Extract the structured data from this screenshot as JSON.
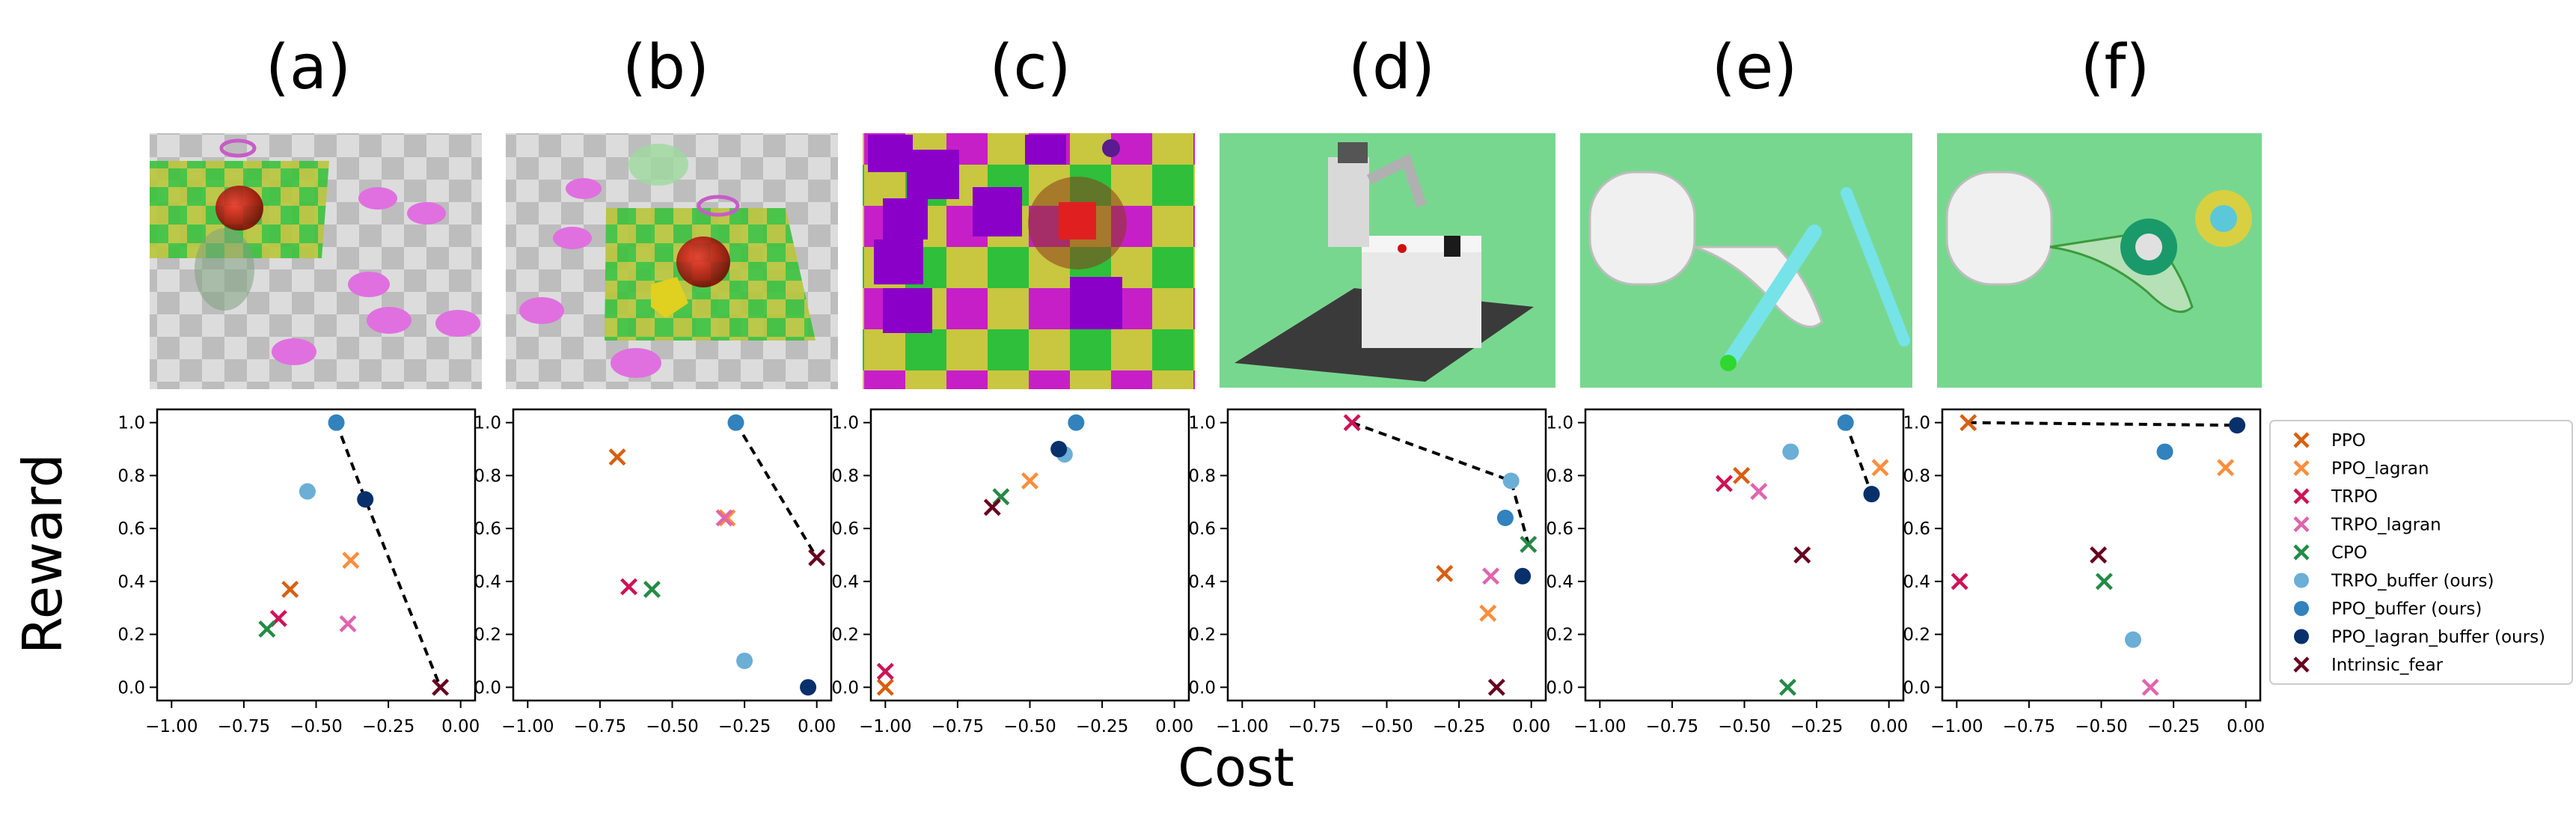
{
  "figure": {
    "ylabel": "Reward",
    "xlabel": "Cost",
    "panel_letters": [
      "(a)",
      "(b)",
      "(c)",
      "(d)",
      "(e)",
      "(f)"
    ]
  },
  "legend": {
    "items": [
      {
        "label": "PPO",
        "marker": "x",
        "color": "#d95f0e"
      },
      {
        "label": "PPO_lagran",
        "marker": "x",
        "color": "#fd8d3c"
      },
      {
        "label": "TRPO",
        "marker": "x",
        "color": "#ce1256"
      },
      {
        "label": "TRPO_lagran",
        "marker": "x",
        "color": "#df65b0"
      },
      {
        "label": "CPO",
        "marker": "x",
        "color": "#238b45"
      },
      {
        "label": "TRPO_buffer (ours)",
        "marker": "o",
        "color": "#6baed6"
      },
      {
        "label": "PPO_buffer (ours)",
        "marker": "o",
        "color": "#3182bd"
      },
      {
        "label": "PPO_lagran_buffer (ours)",
        "marker": "o",
        "color": "#08306b"
      },
      {
        "label": "Intrinsic_fear",
        "marker": "x",
        "color": "#67001f"
      }
    ]
  },
  "scene_images": [
    {
      "panel": "(a)",
      "style": "checker-pink"
    },
    {
      "panel": "(b)",
      "style": "checker-pink-yellow"
    },
    {
      "panel": "(c)",
      "style": "checker-purple-cubes"
    },
    {
      "panel": "(d)",
      "style": "robot-arm"
    },
    {
      "panel": "(e)",
      "style": "shadow-hand-pen"
    },
    {
      "panel": "(f)",
      "style": "shadow-hand-blocks"
    }
  ],
  "chart_data": [
    {
      "type": "scatter",
      "panel": "(a)",
      "xlim": [
        -1.05,
        0.05
      ],
      "ylim": [
        -0.05,
        1.05
      ],
      "xticks": [
        "-1.00",
        "-0.75",
        "-0.50",
        "-0.25",
        "0.00"
      ],
      "yticks": [
        "0.0",
        "0.2",
        "0.4",
        "0.6",
        "0.8",
        "1.0"
      ],
      "points": [
        {
          "series": "PPO",
          "x": -0.59,
          "y": 0.37
        },
        {
          "series": "PPO_lagran",
          "x": -0.38,
          "y": 0.48
        },
        {
          "series": "TRPO",
          "x": -0.63,
          "y": 0.26
        },
        {
          "series": "TRPO_lagran",
          "x": -0.39,
          "y": 0.24
        },
        {
          "series": "CPO",
          "x": -0.67,
          "y": 0.22
        },
        {
          "series": "TRPO_buffer (ours)",
          "x": -0.53,
          "y": 0.74
        },
        {
          "series": "PPO_buffer (ours)",
          "x": -0.43,
          "y": 1.0
        },
        {
          "series": "PPO_lagran_buffer (ours)",
          "x": -0.33,
          "y": 0.71
        },
        {
          "series": "Intrinsic_fear",
          "x": -0.07,
          "y": 0.0
        }
      ],
      "frontier": [
        [
          -0.43,
          1.0
        ],
        [
          -0.33,
          0.71
        ],
        [
          -0.07,
          0.0
        ]
      ]
    },
    {
      "type": "scatter",
      "panel": "(b)",
      "xlim": [
        -1.05,
        0.05
      ],
      "ylim": [
        -0.05,
        1.05
      ],
      "xticks": [
        "-1.00",
        "-0.75",
        "-0.50",
        "-0.25",
        "0.00"
      ],
      "yticks": [
        "0.0",
        "0.2",
        "0.4",
        "0.6",
        "0.8",
        "1.0"
      ],
      "points": [
        {
          "series": "PPO",
          "x": -0.69,
          "y": 0.87
        },
        {
          "series": "PPO_lagran",
          "x": -0.31,
          "y": 0.64
        },
        {
          "series": "TRPO",
          "x": -0.65,
          "y": 0.38
        },
        {
          "series": "TRPO_lagran",
          "x": -0.32,
          "y": 0.64
        },
        {
          "series": "CPO",
          "x": -0.57,
          "y": 0.37
        },
        {
          "series": "TRPO_buffer (ours)",
          "x": -0.25,
          "y": 0.1
        },
        {
          "series": "PPO_buffer (ours)",
          "x": -0.28,
          "y": 1.0
        },
        {
          "series": "PPO_lagran_buffer (ours)",
          "x": -0.03,
          "y": 0.0
        },
        {
          "series": "Intrinsic_fear",
          "x": 0.0,
          "y": 0.49
        }
      ],
      "frontier": [
        [
          -0.28,
          1.0
        ],
        [
          0.0,
          0.49
        ]
      ]
    },
    {
      "type": "scatter",
      "panel": "(c)",
      "xlim": [
        -1.05,
        0.05
      ],
      "ylim": [
        -0.05,
        1.05
      ],
      "xticks": [
        "-1.00",
        "-0.75",
        "-0.50",
        "-0.25",
        "0.00"
      ],
      "yticks": [
        "0.0",
        "0.2",
        "0.4",
        "0.6",
        "0.8",
        "1.0"
      ],
      "points": [
        {
          "series": "PPO",
          "x": -1.0,
          "y": 0.0
        },
        {
          "series": "PPO_lagran",
          "x": -0.5,
          "y": 0.78
        },
        {
          "series": "TRPO",
          "x": -1.0,
          "y": 0.06
        },
        {
          "series": "CPO",
          "x": -0.6,
          "y": 0.72
        },
        {
          "series": "TRPO_buffer (ours)",
          "x": -0.38,
          "y": 0.88
        },
        {
          "series": "PPO_buffer (ours)",
          "x": -0.34,
          "y": 1.0
        },
        {
          "series": "PPO_lagran_buffer (ours)",
          "x": -0.4,
          "y": 0.9
        },
        {
          "series": "Intrinsic_fear",
          "x": -0.63,
          "y": 0.68
        }
      ],
      "frontier": []
    },
    {
      "type": "scatter",
      "panel": "(d)",
      "xlim": [
        -1.05,
        0.05
      ],
      "ylim": [
        -0.05,
        1.05
      ],
      "xticks": [
        "-1.00",
        "-0.75",
        "-0.50",
        "-0.25",
        "0.00"
      ],
      "yticks": [
        "0.0",
        "0.2",
        "0.4",
        "0.6",
        "0.8",
        "1.0"
      ],
      "points": [
        {
          "series": "PPO",
          "x": -0.3,
          "y": 0.43
        },
        {
          "series": "PPO_lagran",
          "x": -0.15,
          "y": 0.28
        },
        {
          "series": "TRPO",
          "x": -0.62,
          "y": 1.0
        },
        {
          "series": "TRPO_lagran",
          "x": -0.14,
          "y": 0.42
        },
        {
          "series": "CPO",
          "x": -0.01,
          "y": 0.54
        },
        {
          "series": "TRPO_buffer (ours)",
          "x": -0.07,
          "y": 0.78
        },
        {
          "series": "PPO_buffer (ours)",
          "x": -0.09,
          "y": 0.64
        },
        {
          "series": "PPO_lagran_buffer (ours)",
          "x": -0.03,
          "y": 0.42
        },
        {
          "series": "Intrinsic_fear",
          "x": -0.12,
          "y": 0.0
        }
      ],
      "frontier": [
        [
          -0.62,
          1.0
        ],
        [
          -0.07,
          0.78
        ],
        [
          -0.01,
          0.54
        ]
      ]
    },
    {
      "type": "scatter",
      "panel": "(e)",
      "xlim": [
        -1.05,
        0.05
      ],
      "ylim": [
        -0.05,
        1.05
      ],
      "xticks": [
        "-1.00",
        "-0.75",
        "-0.50",
        "-0.25",
        "0.00"
      ],
      "yticks": [
        "0.0",
        "0.2",
        "0.4",
        "0.6",
        "0.8",
        "1.0"
      ],
      "points": [
        {
          "series": "PPO",
          "x": -0.51,
          "y": 0.8
        },
        {
          "series": "PPO_lagran",
          "x": -0.03,
          "y": 0.83
        },
        {
          "series": "TRPO",
          "x": -0.57,
          "y": 0.77
        },
        {
          "series": "TRPO_lagran",
          "x": -0.45,
          "y": 0.74
        },
        {
          "series": "CPO",
          "x": -0.35,
          "y": 0.0
        },
        {
          "series": "TRPO_buffer (ours)",
          "x": -0.34,
          "y": 0.89
        },
        {
          "series": "PPO_buffer (ours)",
          "x": -0.15,
          "y": 1.0
        },
        {
          "series": "PPO_lagran_buffer (ours)",
          "x": -0.06,
          "y": 0.73
        },
        {
          "series": "Intrinsic_fear",
          "x": -0.3,
          "y": 0.5
        }
      ],
      "frontier": [
        [
          -0.15,
          1.0
        ],
        [
          -0.06,
          0.73
        ]
      ]
    },
    {
      "type": "scatter",
      "panel": "(f)",
      "xlim": [
        -1.05,
        0.05
      ],
      "ylim": [
        -0.05,
        1.05
      ],
      "xticks": [
        "-1.00",
        "-0.75",
        "-0.50",
        "-0.25",
        "0.00"
      ],
      "yticks": [
        "0.0",
        "0.2",
        "0.4",
        "0.6",
        "0.8",
        "1.0"
      ],
      "points": [
        {
          "series": "PPO",
          "x": -0.96,
          "y": 1.0
        },
        {
          "series": "PPO_lagran",
          "x": -0.07,
          "y": 0.83
        },
        {
          "series": "TRPO",
          "x": -0.99,
          "y": 0.4
        },
        {
          "series": "TRPO_lagran",
          "x": -0.33,
          "y": 0.0
        },
        {
          "series": "CPO",
          "x": -0.49,
          "y": 0.4
        },
        {
          "series": "TRPO_buffer (ours)",
          "x": -0.39,
          "y": 0.18
        },
        {
          "series": "PPO_buffer (ours)",
          "x": -0.28,
          "y": 0.89
        },
        {
          "series": "PPO_lagran_buffer (ours)",
          "x": -0.03,
          "y": 0.99
        },
        {
          "series": "Intrinsic_fear",
          "x": -0.51,
          "y": 0.5
        }
      ],
      "frontier": [
        [
          -0.96,
          1.0
        ],
        [
          -0.03,
          0.99
        ]
      ]
    }
  ]
}
